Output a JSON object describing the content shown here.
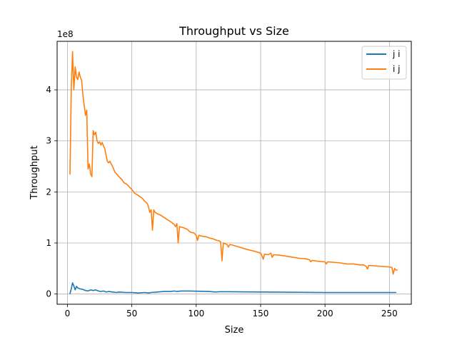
{
  "chart_data": {
    "type": "line",
    "title": "Throughput vs Size",
    "xlabel": "Size",
    "ylabel": "Throughput",
    "y_multiplier_label": "1e8",
    "xlim": [
      -8,
      267
    ],
    "ylim": [
      -0.2,
      4.95
    ],
    "x_ticks": [
      0,
      50,
      100,
      150,
      200,
      250
    ],
    "y_ticks": [
      0,
      1,
      2,
      3,
      4
    ],
    "x_tick_labels": [
      "0",
      "50",
      "100",
      "150",
      "200",
      "250"
    ],
    "y_tick_labels": [
      "0",
      "1",
      "2",
      "3",
      "4"
    ],
    "grid": true,
    "legend_position": "top-right",
    "series": [
      {
        "name": "j i",
        "color": "#1f77b4",
        "points": [
          [
            2,
            0.01
          ],
          [
            3,
            0.1
          ],
          [
            4,
            0.22
          ],
          [
            5,
            0.16
          ],
          [
            6,
            0.08
          ],
          [
            7,
            0.15
          ],
          [
            8,
            0.12
          ],
          [
            10,
            0.1
          ],
          [
            12,
            0.09
          ],
          [
            14,
            0.07
          ],
          [
            16,
            0.06
          ],
          [
            18,
            0.08
          ],
          [
            20,
            0.07
          ],
          [
            22,
            0.08
          ],
          [
            24,
            0.06
          ],
          [
            26,
            0.05
          ],
          [
            28,
            0.06
          ],
          [
            30,
            0.04
          ],
          [
            32,
            0.05
          ],
          [
            35,
            0.04
          ],
          [
            38,
            0.03
          ],
          [
            40,
            0.04
          ],
          [
            45,
            0.03
          ],
          [
            50,
            0.03
          ],
          [
            55,
            0.02
          ],
          [
            60,
            0.03
          ],
          [
            63,
            0.02
          ],
          [
            65,
            0.03
          ],
          [
            70,
            0.04
          ],
          [
            75,
            0.05
          ],
          [
            80,
            0.05
          ],
          [
            83,
            0.06
          ],
          [
            85,
            0.05
          ],
          [
            88,
            0.06
          ],
          [
            95,
            0.06
          ],
          [
            100,
            0.055
          ],
          [
            110,
            0.05
          ],
          [
            115,
            0.04
          ],
          [
            118,
            0.045
          ],
          [
            125,
            0.045
          ],
          [
            150,
            0.04
          ],
          [
            200,
            0.03
          ],
          [
            230,
            0.03
          ],
          [
            255,
            0.03
          ]
        ]
      },
      {
        "name": "i j",
        "color": "#ff7f0e",
        "points": [
          [
            2,
            2.35
          ],
          [
            3,
            4.0
          ],
          [
            4,
            4.75
          ],
          [
            5,
            4.0
          ],
          [
            6,
            4.45
          ],
          [
            7,
            4.25
          ],
          [
            8,
            4.2
          ],
          [
            9,
            4.35
          ],
          [
            10,
            4.25
          ],
          [
            11,
            4.18
          ],
          [
            12,
            3.9
          ],
          [
            13,
            3.7
          ],
          [
            14,
            3.5
          ],
          [
            15,
            3.6
          ],
          [
            16,
            2.45
          ],
          [
            17,
            2.55
          ],
          [
            18,
            2.35
          ],
          [
            19,
            2.3
          ],
          [
            20,
            3.2
          ],
          [
            21,
            3.12
          ],
          [
            22,
            3.17
          ],
          [
            23,
            3.0
          ],
          [
            24,
            2.95
          ],
          [
            25,
            2.98
          ],
          [
            26,
            2.92
          ],
          [
            27,
            2.97
          ],
          [
            28,
            2.9
          ],
          [
            29,
            2.85
          ],
          [
            30,
            2.72
          ],
          [
            31,
            2.6
          ],
          [
            32,
            2.57
          ],
          [
            33,
            2.6
          ],
          [
            35,
            2.5
          ],
          [
            37,
            2.38
          ],
          [
            40,
            2.3
          ],
          [
            42,
            2.25
          ],
          [
            44,
            2.18
          ],
          [
            46,
            2.15
          ],
          [
            48,
            2.1
          ],
          [
            50,
            2.05
          ],
          [
            52,
            1.98
          ],
          [
            55,
            1.93
          ],
          [
            58,
            1.88
          ],
          [
            60,
            1.82
          ],
          [
            62,
            1.77
          ],
          [
            63,
            1.7
          ],
          [
            64,
            1.6
          ],
          [
            65,
            1.65
          ],
          [
            66,
            1.25
          ],
          [
            67,
            1.65
          ],
          [
            68,
            1.6
          ],
          [
            70,
            1.57
          ],
          [
            72,
            1.55
          ],
          [
            75,
            1.5
          ],
          [
            78,
            1.45
          ],
          [
            80,
            1.42
          ],
          [
            83,
            1.36
          ],
          [
            84,
            1.32
          ],
          [
            85,
            1.38
          ],
          [
            86,
            1.0
          ],
          [
            87,
            1.32
          ],
          [
            90,
            1.3
          ],
          [
            93,
            1.27
          ],
          [
            95,
            1.22
          ],
          [
            97,
            1.2
          ],
          [
            98,
            1.2
          ],
          [
            100,
            1.15
          ],
          [
            101,
            1.05
          ],
          [
            102,
            1.15
          ],
          [
            105,
            1.13
          ],
          [
            108,
            1.12
          ],
          [
            110,
            1.1
          ],
          [
            113,
            1.08
          ],
          [
            116,
            1.05
          ],
          [
            118,
            1.04
          ],
          [
            119,
            1.02
          ],
          [
            120,
            0.65
          ],
          [
            121,
            1.0
          ],
          [
            124,
            0.97
          ],
          [
            125,
            0.92
          ],
          [
            126,
            0.97
          ],
          [
            128,
            0.96
          ],
          [
            132,
            0.93
          ],
          [
            136,
            0.9
          ],
          [
            140,
            0.87
          ],
          [
            145,
            0.84
          ],
          [
            150,
            0.8
          ],
          [
            151,
            0.75
          ],
          [
            152,
            0.68
          ],
          [
            153,
            0.78
          ],
          [
            156,
            0.77
          ],
          [
            158,
            0.8
          ],
          [
            159,
            0.72
          ],
          [
            160,
            0.77
          ],
          [
            165,
            0.76
          ],
          [
            170,
            0.74
          ],
          [
            175,
            0.72
          ],
          [
            180,
            0.7
          ],
          [
            185,
            0.69
          ],
          [
            188,
            0.67
          ],
          [
            189,
            0.63
          ],
          [
            190,
            0.66
          ],
          [
            195,
            0.64
          ],
          [
            200,
            0.63
          ],
          [
            201,
            0.59
          ],
          [
            202,
            0.63
          ],
          [
            207,
            0.62
          ],
          [
            212,
            0.61
          ],
          [
            217,
            0.59
          ],
          [
            222,
            0.59
          ],
          [
            227,
            0.57
          ],
          [
            230,
            0.57
          ],
          [
            232,
            0.54
          ],
          [
            233,
            0.49
          ],
          [
            234,
            0.56
          ],
          [
            240,
            0.55
          ],
          [
            245,
            0.54
          ],
          [
            250,
            0.53
          ],
          [
            252,
            0.52
          ],
          [
            253,
            0.39
          ],
          [
            254,
            0.5
          ],
          [
            255,
            0.47
          ],
          [
            256,
            0.47
          ]
        ]
      }
    ]
  }
}
